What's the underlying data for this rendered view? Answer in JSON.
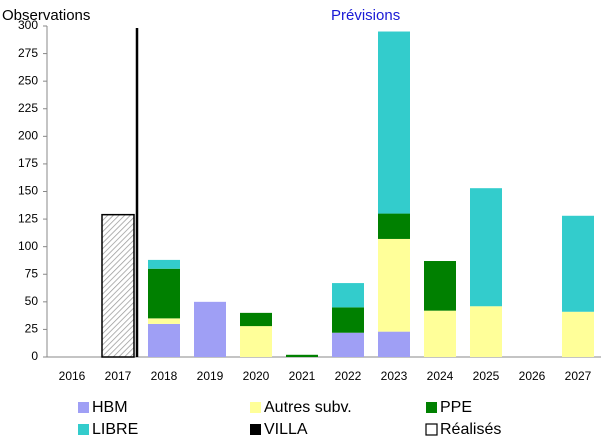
{
  "chart_data": {
    "type": "stacked-bar",
    "annotations": [
      "Observations",
      "Prévisions"
    ],
    "categories": [
      "2016",
      "2017",
      "2018",
      "2019",
      "2020",
      "2021",
      "2022",
      "2023",
      "2024",
      "2025",
      "2026",
      "2027"
    ],
    "series": [
      {
        "name": "HBM",
        "color": "#9f9ff5",
        "values": [
          null,
          null,
          30,
          50,
          null,
          null,
          22,
          23,
          null,
          null,
          null,
          null
        ]
      },
      {
        "name": "Autres subv.",
        "color": "#ffff99",
        "values": [
          null,
          null,
          5,
          null,
          28,
          null,
          null,
          84,
          42,
          46,
          null,
          41
        ]
      },
      {
        "name": "PPE",
        "color": "#008000",
        "values": [
          null,
          null,
          45,
          null,
          12,
          2,
          23,
          23,
          45,
          null,
          null,
          null
        ]
      },
      {
        "name": "LIBRE",
        "color": "#33cccc",
        "values": [
          null,
          null,
          8,
          null,
          null,
          null,
          22,
          165,
          null,
          107,
          null,
          87
        ]
      },
      {
        "name": "VILLA",
        "color": "#000000",
        "values": [
          null,
          null,
          null,
          null,
          null,
          null,
          null,
          null,
          null,
          null,
          null,
          null
        ]
      },
      {
        "name": "Réalisés",
        "color": "#ffffff",
        "hatch": true,
        "values": [
          null,
          129,
          null,
          null,
          null,
          null,
          null,
          null,
          null,
          null,
          null,
          null
        ]
      }
    ],
    "ylim": [
      0,
      300
    ],
    "yticks": [
      0,
      25,
      50,
      75,
      100,
      125,
      150,
      175,
      200,
      225,
      250,
      275,
      300
    ],
    "grid": false,
    "legend": "bottom"
  }
}
